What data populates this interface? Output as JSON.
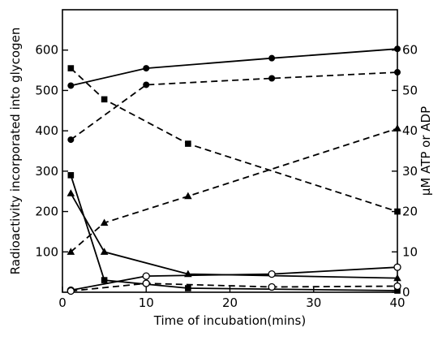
{
  "chart_data": {
    "type": "line",
    "title": "",
    "xlabel": "Time of incubation(mins)",
    "ylabel_left": "Radioactivity incorporated into glycogen",
    "ylabel_right": "µM ATP or ADP",
    "xlim": [
      0,
      40
    ],
    "ylim_left": [
      0,
      700
    ],
    "ylim_right": [
      0,
      70
    ],
    "x_ticks": [
      0,
      10,
      20,
      30,
      40
    ],
    "y_ticks_left": [
      100,
      200,
      300,
      400,
      500,
      600
    ],
    "y_ticks_right": [
      0,
      10,
      20,
      30,
      40,
      50,
      60
    ],
    "grid": false,
    "legend": "none",
    "series": [
      {
        "marker": "filled-circle",
        "line": "solid",
        "axis": "left",
        "x": [
          1,
          10,
          25,
          40
        ],
        "y": [
          512,
          555,
          580,
          603
        ]
      },
      {
        "marker": "filled-circle",
        "line": "dashed",
        "axis": "left",
        "x": [
          1,
          10,
          25,
          40
        ],
        "y": [
          378,
          514,
          530,
          545
        ]
      },
      {
        "marker": "filled-square",
        "line": "dashed",
        "axis": "left",
        "x": [
          1,
          5,
          15,
          40
        ],
        "y": [
          555,
          478,
          368,
          200
        ]
      },
      {
        "marker": "filled-triangle",
        "line": "dashed",
        "axis": "left",
        "x": [
          1,
          5,
          15,
          40
        ],
        "y": [
          100,
          172,
          238,
          406
        ]
      },
      {
        "marker": "filled-square",
        "line": "solid",
        "axis": "left",
        "x": [
          1,
          5,
          15,
          40
        ],
        "y": [
          290,
          30,
          10,
          4
        ]
      },
      {
        "marker": "filled-triangle",
        "line": "solid",
        "axis": "left",
        "x": [
          1,
          5,
          15,
          40
        ],
        "y": [
          245,
          100,
          45,
          35
        ]
      },
      {
        "marker": "open-circle",
        "line": "solid",
        "axis": "left",
        "x": [
          1,
          10,
          25,
          40
        ],
        "y": [
          5,
          40,
          45,
          62
        ]
      },
      {
        "marker": "open-circle",
        "line": "dashed",
        "axis": "left",
        "x": [
          1,
          10,
          25,
          40
        ],
        "y": [
          3,
          22,
          13,
          15
        ]
      }
    ]
  }
}
